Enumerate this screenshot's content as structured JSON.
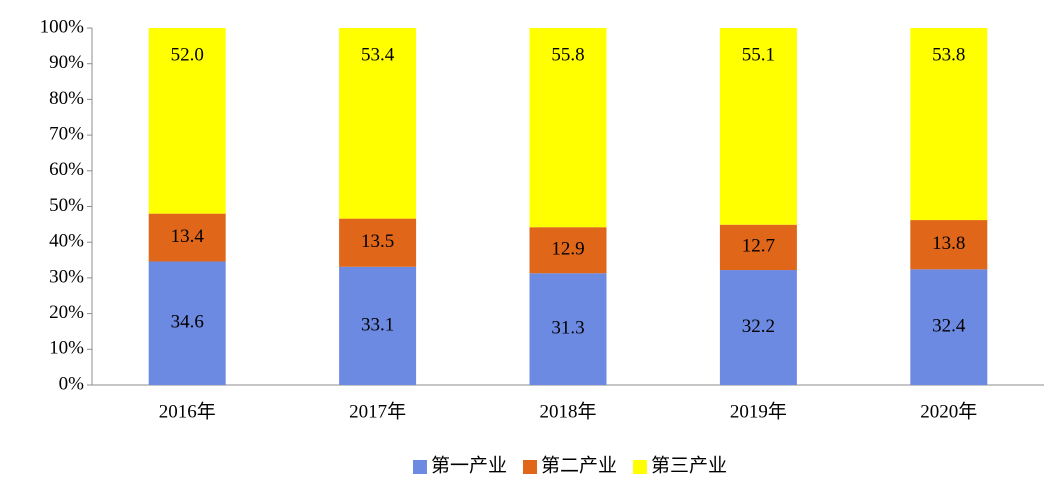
{
  "chart_data": {
    "type": "stacked-bar",
    "categories": [
      "2016年",
      "2017年",
      "2018年",
      "2019年",
      "2020年"
    ],
    "series": [
      {
        "name": "第一产业",
        "color": "#6d8ae2",
        "values": [
          34.6,
          33.1,
          31.3,
          32.2,
          32.4
        ]
      },
      {
        "name": "第二产业",
        "color": "#e0661a",
        "values": [
          13.4,
          13.5,
          12.9,
          12.7,
          13.8
        ]
      },
      {
        "name": "第三产业",
        "color": "#ffff00",
        "values": [
          52,
          53.4,
          55.8,
          55.1,
          53.8
        ],
        "value_labels": [
          "52.0",
          "53.4",
          "55.8",
          "55.1",
          "53.8"
        ]
      }
    ],
    "ylim": [
      0,
      100
    ],
    "yticks": [
      {
        "value": 0,
        "label": "0%"
      },
      {
        "value": 10,
        "label": "10%"
      },
      {
        "value": 20,
        "label": "20%"
      },
      {
        "value": 30,
        "label": "30%"
      },
      {
        "value": 40,
        "label": "40%"
      },
      {
        "value": 50,
        "label": "50%"
      },
      {
        "value": 60,
        "label": "60%"
      },
      {
        "value": 70,
        "label": "70%"
      },
      {
        "value": 80,
        "label": "80%"
      },
      {
        "value": 90,
        "label": "90%"
      },
      {
        "value": 100,
        "label": "100%"
      }
    ],
    "grid": false,
    "legend": "bottom"
  }
}
